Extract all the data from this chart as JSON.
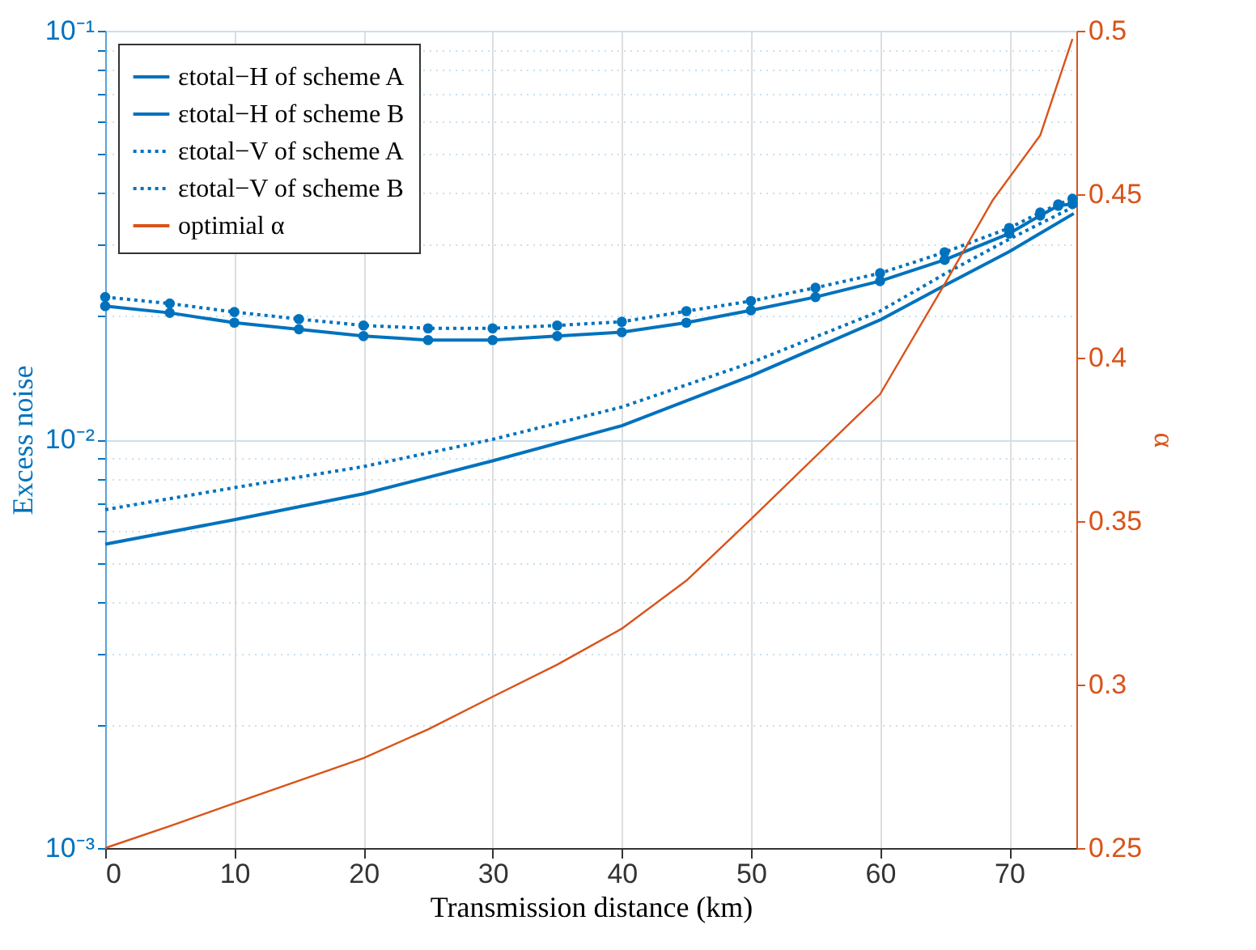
{
  "chart_data": {
    "type": "line",
    "xlabel": "Transmission distance (km)",
    "ylabel": "Excess noise",
    "y2label": "α",
    "xlim": [
      0,
      75.2
    ],
    "xticks": [
      0,
      10,
      20,
      30,
      40,
      50,
      60,
      70
    ],
    "ylim": [
      0.001,
      0.1
    ],
    "yticks": [
      {
        "value": 0.001,
        "label": "10⁻³"
      },
      {
        "value": 0.002,
        "label": null
      },
      {
        "value": 0.003,
        "label": null
      },
      {
        "value": 0.004,
        "label": null
      },
      {
        "value": 0.005,
        "label": null
      },
      {
        "value": 0.006,
        "label": null
      },
      {
        "value": 0.007,
        "label": null
      },
      {
        "value": 0.008,
        "label": null
      },
      {
        "value": 0.009,
        "label": null
      },
      {
        "value": 0.01,
        "label": "10⁻²"
      },
      {
        "value": 0.02,
        "label": null
      },
      {
        "value": 0.03,
        "label": null
      },
      {
        "value": 0.04,
        "label": null
      },
      {
        "value": 0.05,
        "label": null
      },
      {
        "value": 0.06,
        "label": null
      },
      {
        "value": 0.07,
        "label": null
      },
      {
        "value": 0.08,
        "label": null
      },
      {
        "value": 0.09,
        "label": null
      },
      {
        "value": 0.1,
        "label": "10⁻¹"
      }
    ],
    "y2lim": [
      0.25,
      0.5
    ],
    "y2ticks": [
      0.25,
      0.3,
      0.35,
      0.4,
      0.45,
      0.5
    ],
    "log": "y",
    "grid": true,
    "legend": "top left",
    "series": [
      {
        "name": "εtotal−H of scheme A",
        "color": "#0072bd",
        "line_style": "solid",
        "marker": "none",
        "x": [
          0,
          10,
          20,
          30,
          40,
          50,
          60,
          65,
          70,
          75
        ],
        "values": [
          0.00554,
          0.00636,
          0.00736,
          0.00886,
          0.0108,
          0.0143,
          0.0196,
          0.0238,
          0.0288,
          0.0357
        ]
      },
      {
        "name": "εtotal−H of scheme B",
        "color": "#0072bd",
        "line_style": "solid",
        "marker": "circle",
        "x": [
          0,
          5,
          10,
          15,
          20,
          25,
          30,
          35,
          40,
          45,
          50,
          55,
          60,
          65,
          70,
          72.4,
          73.8,
          74.9
        ],
        "values": [
          0.0212,
          0.0204,
          0.0193,
          0.0186,
          0.0179,
          0.0175,
          0.0175,
          0.0179,
          0.0183,
          0.0193,
          0.0207,
          0.0223,
          0.0244,
          0.0275,
          0.0319,
          0.0353,
          0.0373,
          0.0377
        ]
      },
      {
        "name": "εtotal−V of scheme A",
        "color": "#0072bd",
        "line_style": "dotted",
        "marker": "none",
        "x": [
          0,
          10,
          20,
          30,
          40,
          50,
          60,
          65,
          70,
          75
        ],
        "values": [
          0.00673,
          0.00762,
          0.00858,
          0.01,
          0.012,
          0.0154,
          0.0206,
          0.0254,
          0.0309,
          0.0371
        ]
      },
      {
        "name": "εtotal−V of scheme B",
        "color": "#0072bd",
        "line_style": "dotted",
        "marker": "circle",
        "x": [
          0,
          5,
          10,
          15,
          20,
          25,
          30,
          35,
          40,
          45,
          50,
          55,
          60,
          65,
          70,
          72.4,
          73.8,
          74.9
        ],
        "values": [
          0.0223,
          0.0215,
          0.0205,
          0.0197,
          0.019,
          0.0187,
          0.0187,
          0.019,
          0.0194,
          0.0206,
          0.0218,
          0.0235,
          0.0255,
          0.0287,
          0.0329,
          0.0359,
          0.0376,
          0.0388
        ]
      },
      {
        "name": "optimial α",
        "color": "#d95319",
        "line_style": "solid",
        "marker": "none",
        "axis": "y2",
        "x": [
          0,
          5,
          10,
          20,
          25,
          30,
          35,
          40,
          45,
          50,
          58.2,
          60,
          65,
          68.7,
          72.4,
          74.9
        ],
        "values": [
          0.25,
          0.2567,
          0.2637,
          0.2775,
          0.2863,
          0.2963,
          0.3061,
          0.3171,
          0.3318,
          0.3506,
          0.382,
          0.3888,
          0.4225,
          0.448,
          0.468,
          0.4975
        ]
      }
    ]
  }
}
